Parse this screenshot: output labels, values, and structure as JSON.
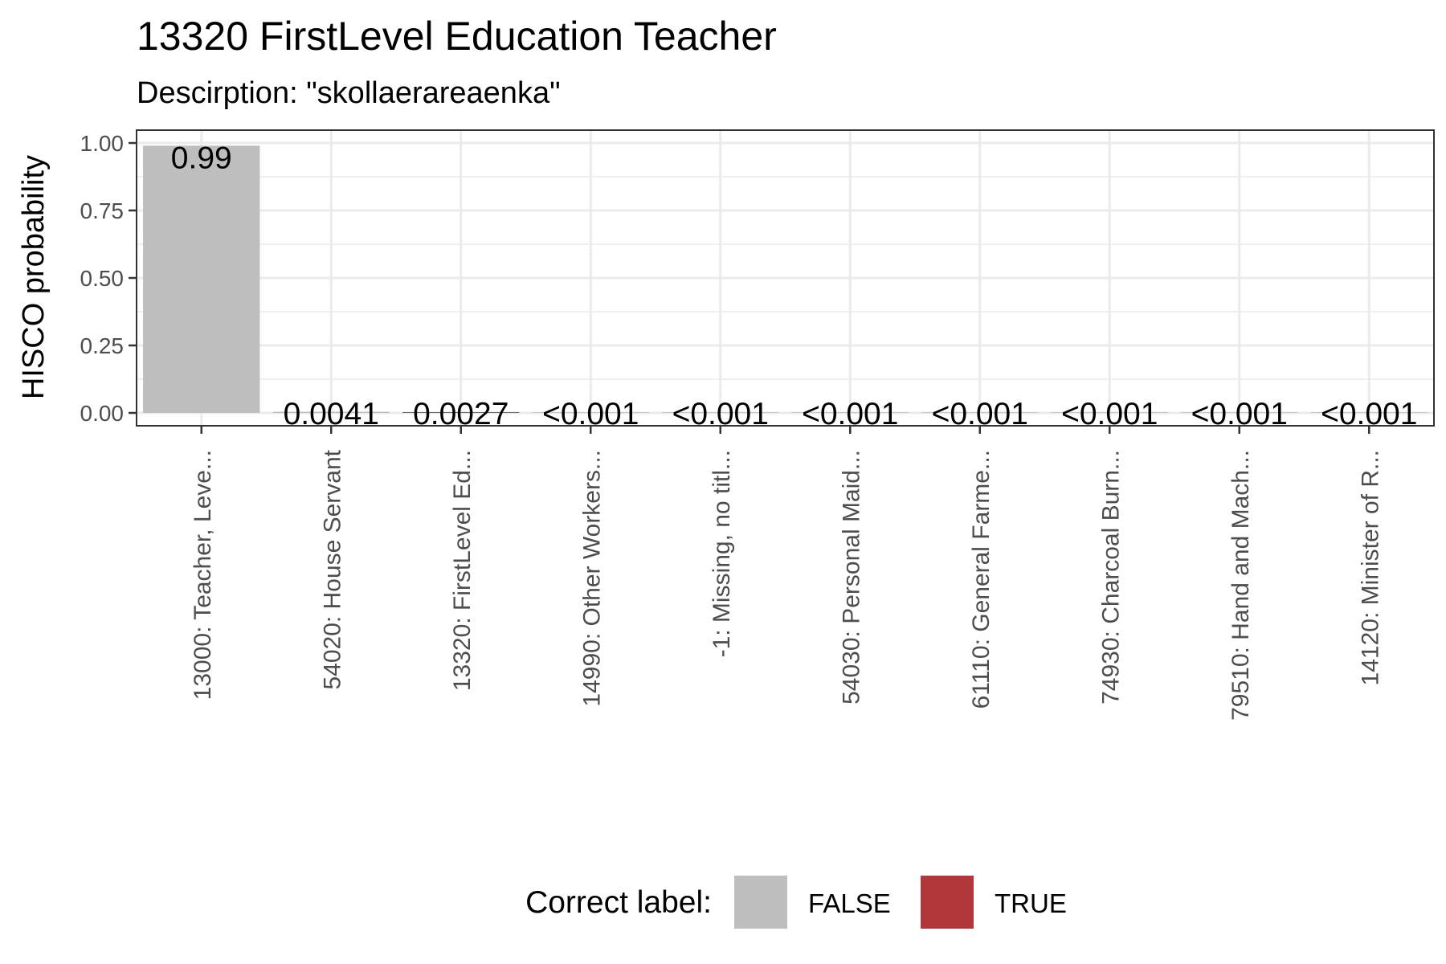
{
  "chart_data": {
    "type": "bar",
    "title": "13320 FirstLevel Education Teacher",
    "subtitle": "Descirption: \"skollaerareaenka\"",
    "xlabel": "",
    "ylabel": "HISCO probability",
    "ylim": [
      0,
      1.05
    ],
    "yticks": [
      0,
      0.25,
      0.5,
      0.75,
      1.0
    ],
    "ytick_labels": [
      "0.00",
      "0.25",
      "0.50",
      "0.75",
      "1.00"
    ],
    "grid": true,
    "categories": [
      "13000: Teacher, Leve...",
      "54020: House Servant",
      "13320: FirstLevel Ed...",
      "14990: Other Workers...",
      "-1: Missing, no titl...",
      "54030: Personal Maid...",
      "61110: General Farme...",
      "74930: Charcoal Burn...",
      "79510: Hand and Mach...",
      "14120: Minister of R..."
    ],
    "values": [
      0.99,
      0.0041,
      0.0027,
      0.0005,
      0.0005,
      0.0005,
      0.0005,
      0.0005,
      0.0005,
      0.0005
    ],
    "value_labels": [
      "0.99",
      "0.0041",
      "0.0027",
      "<0.001",
      "<0.001",
      "<0.001",
      "<0.001",
      "<0.001",
      "<0.001",
      "<0.001"
    ],
    "correct": [
      false,
      false,
      true,
      false,
      false,
      false,
      false,
      false,
      false,
      false
    ],
    "legend": {
      "title": "Correct label:",
      "position": "bottom",
      "entries": [
        {
          "label": "FALSE",
          "color": "#bebebe"
        },
        {
          "label": "TRUE",
          "color": "#b2373a"
        }
      ]
    }
  }
}
